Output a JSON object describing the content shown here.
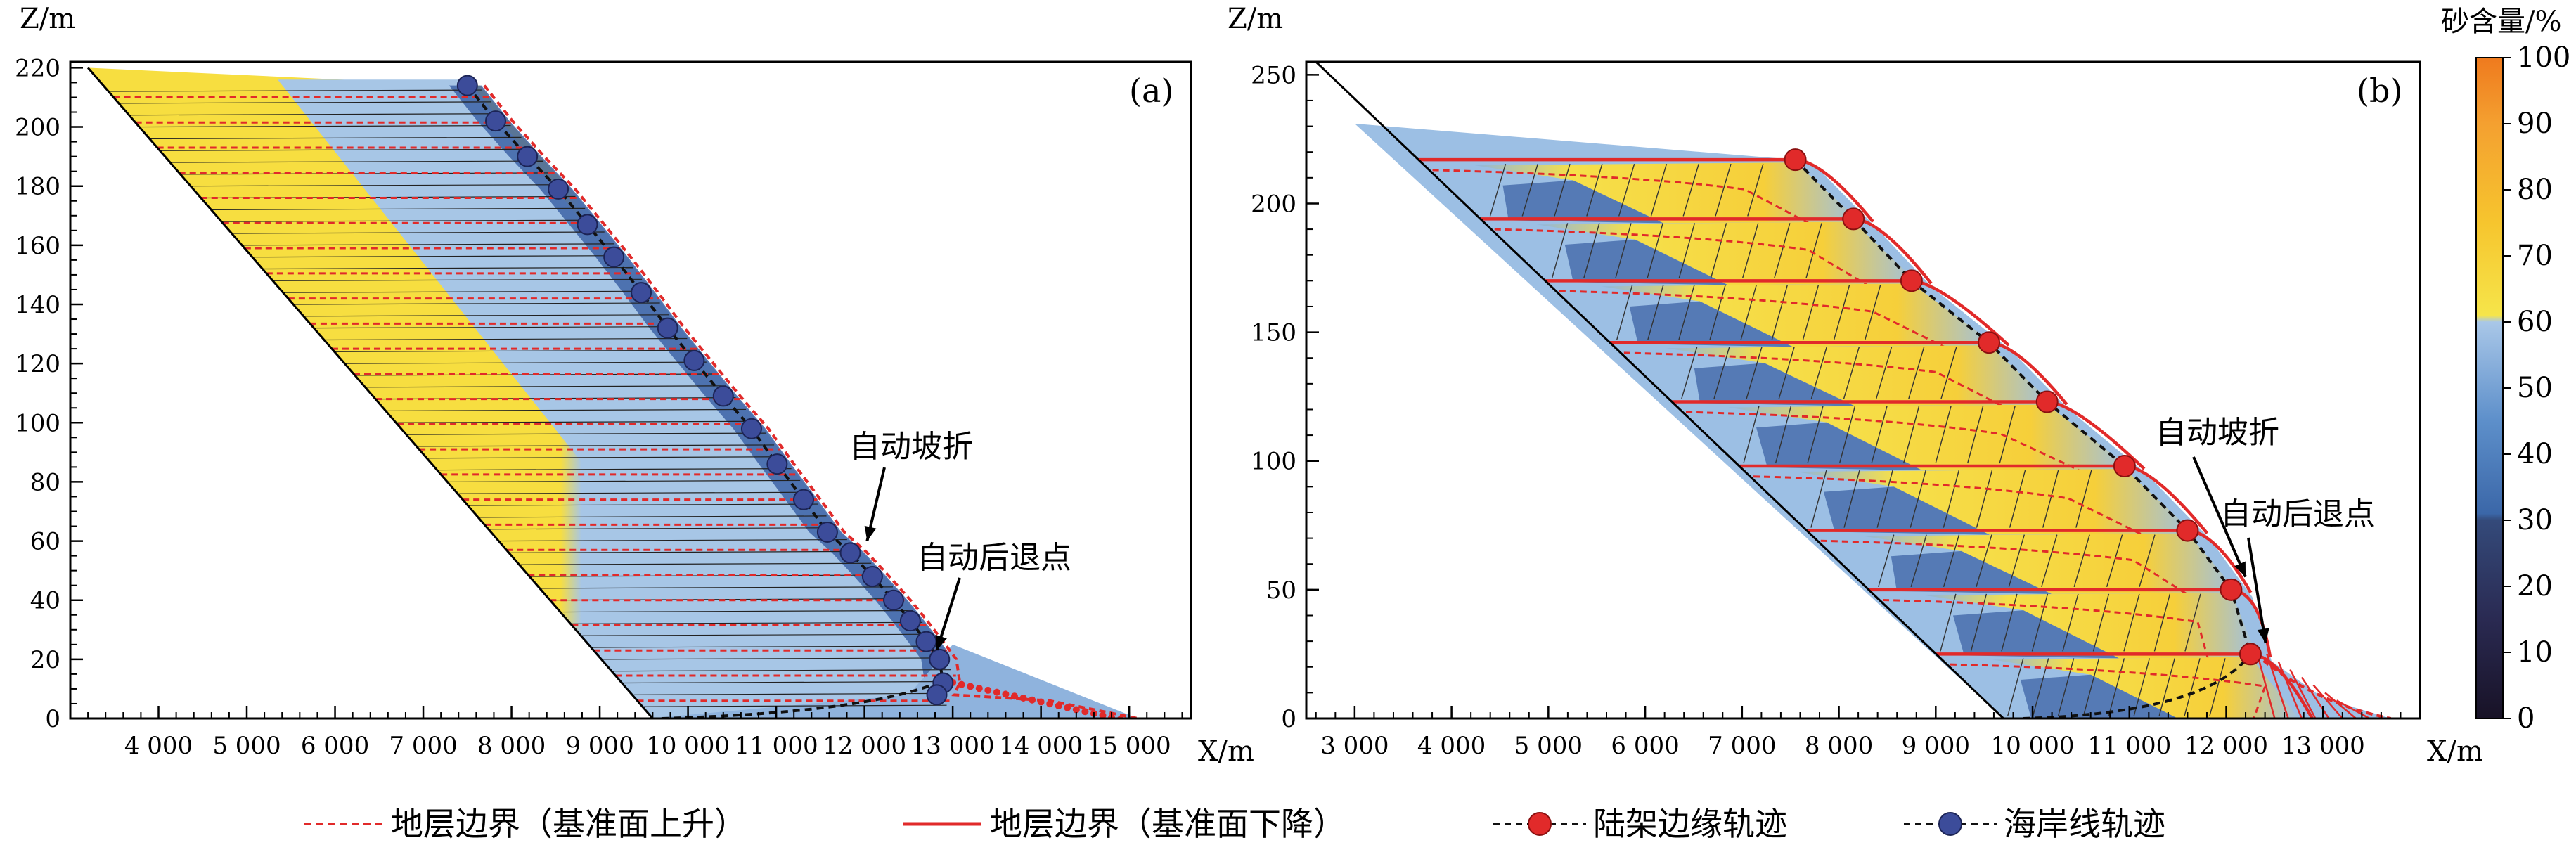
{
  "chart_data": [
    {
      "type": "area",
      "panel_label": "(a)",
      "ylabel": "Z/m",
      "xlabel": "X/m",
      "xlim": [
        3000,
        15700
      ],
      "ylim": [
        0,
        222
      ],
      "xticks": [
        4000,
        5000,
        6000,
        7000,
        8000,
        9000,
        10000,
        11000,
        12000,
        13000,
        14000,
        15000
      ],
      "xtick_labels": [
        "4 000",
        "5 000",
        "6 000",
        "7 000",
        "8 000",
        "9 000",
        "10 000",
        "11 000",
        "12 000",
        "13 000",
        "14 000",
        "15 000"
      ],
      "yticks": [
        0,
        20,
        40,
        60,
        80,
        100,
        120,
        140,
        160,
        180,
        200,
        220
      ],
      "ytick_labels": [
        "0",
        "20",
        "40",
        "60",
        "80",
        "100",
        "120",
        "140",
        "160",
        "180",
        "200",
        "220"
      ],
      "basement_line": {
        "x": [
          3200,
          9600
        ],
        "z": [
          220,
          0
        ]
      },
      "shoreline_points": {
        "x": [
          7500,
          7820,
          8180,
          8530,
          8860,
          9160,
          9470,
          9770,
          10070,
          10400,
          10720,
          11010,
          11310,
          11580,
          11840,
          12090,
          12330,
          12520,
          12700,
          12850,
          12890,
          12820
        ],
        "z": [
          214,
          202,
          190,
          179,
          167,
          156,
          144,
          132,
          121,
          109,
          98,
          86,
          74,
          63,
          56,
          48,
          40,
          33,
          26,
          20,
          12,
          8
        ]
      },
      "annotations": [
        {
          "text": "自动坡折",
          "point": {
            "x": 12030,
            "z": 60
          }
        },
        {
          "text": "自动后退点",
          "point": {
            "x": 12900,
            "z": 25
          }
        }
      ]
    },
    {
      "type": "area",
      "panel_label": "(b)",
      "ylabel": "Z/m",
      "xlabel": "X/m",
      "xlim": [
        2500,
        14000
      ],
      "ylim": [
        0,
        255
      ],
      "xticks": [
        3000,
        4000,
        5000,
        6000,
        7000,
        8000,
        9000,
        10000,
        11000,
        12000,
        13000
      ],
      "xtick_labels": [
        "3 000",
        "4 000",
        "5 000",
        "6 000",
        "7 000",
        "8 000",
        "9 000",
        "10 000",
        "11 000",
        "12 000",
        "13 000"
      ],
      "yticks": [
        0,
        50,
        100,
        150,
        200,
        250
      ],
      "ytick_labels": [
        "0",
        "50",
        "100",
        "150",
        "200",
        "250"
      ],
      "basement_line": {
        "x": [
          2600,
          9700
        ],
        "z": [
          255,
          0
        ]
      },
      "shelf_edge_points": {
        "x": [
          7550,
          8150,
          8750,
          9550,
          10150,
          10950,
          11600,
          12050,
          12250
        ],
        "z": [
          217,
          194,
          170,
          146,
          123,
          98,
          73,
          50,
          25
        ]
      },
      "annotations": [
        {
          "text": "自动坡折",
          "point": {
            "x": 12200,
            "z": 55
          }
        },
        {
          "text": "自动后退点",
          "point": {
            "x": 12450,
            "z": 32
          }
        }
      ]
    }
  ],
  "colorbar": {
    "title": "砂含量/%",
    "ticks": [
      "0",
      "10",
      "20",
      "30",
      "40",
      "50",
      "60",
      "70",
      "80",
      "90",
      "100"
    ],
    "stops": [
      "#1b1530",
      "#2a2850",
      "#3a5fa0",
      "#5b8ac9",
      "#a9c8e8",
      "#f5e44c",
      "#f5c330",
      "#f5a030",
      "#f07f20"
    ]
  },
  "legend": [
    {
      "label": "地层边界（基准面上升）",
      "style": "dashed",
      "color": "#e12a2a"
    },
    {
      "label": "地层边界（基准面下降）",
      "style": "solid",
      "color": "#e12a2a"
    },
    {
      "label": "陆架边缘轨迹",
      "style": "marker",
      "color": "#e12a2a"
    },
    {
      "label": "海岸线轨迹",
      "style": "marker",
      "color": "#3c4c9a"
    }
  ]
}
